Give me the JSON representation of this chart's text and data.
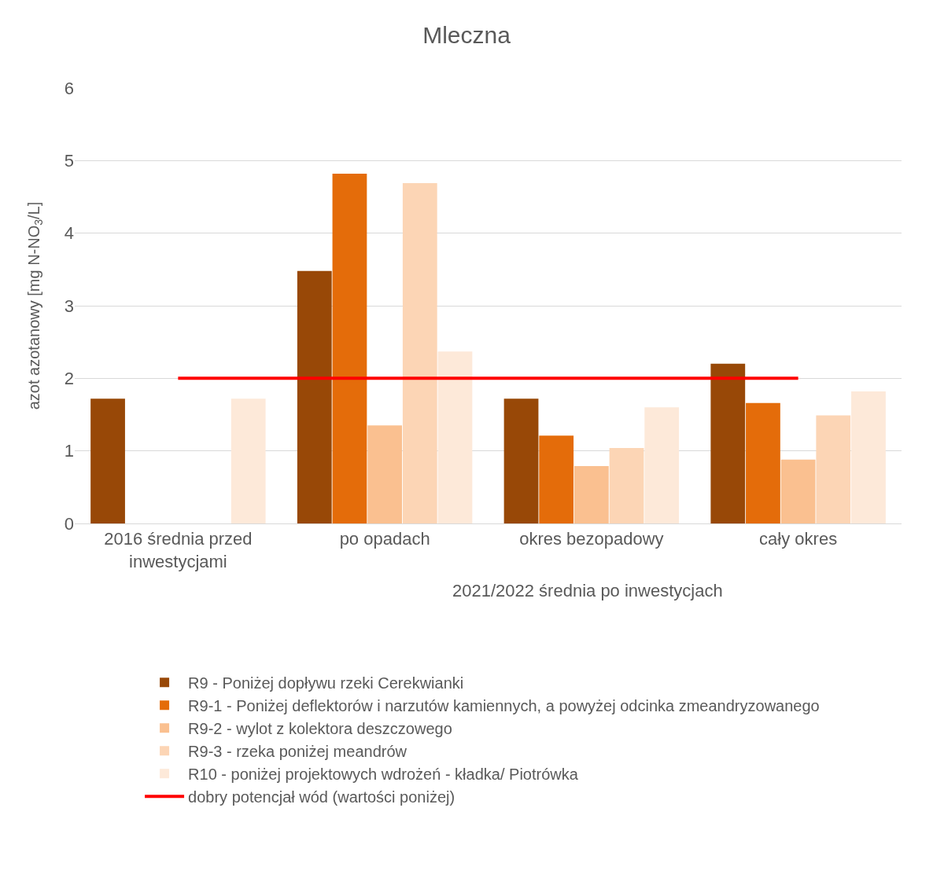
{
  "chart_data": {
    "type": "bar",
    "title": "Mleczna",
    "ylabel": "azot azotanowy [mg N-NO$_{3}$/L]",
    "categories": [
      "2016 średnia przed inwestycjami",
      "po opadach",
      "okres bezopadowy",
      "cały okres"
    ],
    "series": [
      {
        "name": "R9 - Poniżej dopływu rzeki Cerekwianki",
        "color": "#984807",
        "values": [
          1.72,
          3.48,
          1.72,
          2.2
        ]
      },
      {
        "name": "R9-1 - Poniżej deflektorów i narzutów kamiennych, a powyżej odcinka zmeandryzowanego",
        "color": "#e46c0a",
        "values": [
          null,
          4.82,
          1.21,
          1.66
        ]
      },
      {
        "name": "R9-2 - wylot z kolektora deszczowego",
        "color": "#fac090",
        "values": [
          null,
          1.35,
          0.79,
          0.88
        ]
      },
      {
        "name": "R9-3 - rzeka poniżej meandrów",
        "color": "#fcd5b5",
        "values": [
          null,
          4.69,
          1.04,
          1.49
        ]
      },
      {
        "name": "R10 - poniżej projektowych wdrożeń - kładka/ Piotrówka",
        "color": "#fde9d9",
        "values": [
          1.72,
          2.37,
          1.6,
          1.82
        ]
      },
      {
        "name": "dobry potencjał wód (wartości poniżej)",
        "type": "line",
        "color": "#ff0000",
        "values": [
          2,
          2,
          2,
          2
        ]
      }
    ],
    "annotations": [
      "2021/2022 średnia po inwestycjach"
    ],
    "ylim": [
      0,
      6
    ],
    "yticks": [
      0,
      1,
      2,
      3,
      4,
      5,
      6
    ],
    "grid": "y",
    "legend": "bottom",
    "marker": "none"
  }
}
